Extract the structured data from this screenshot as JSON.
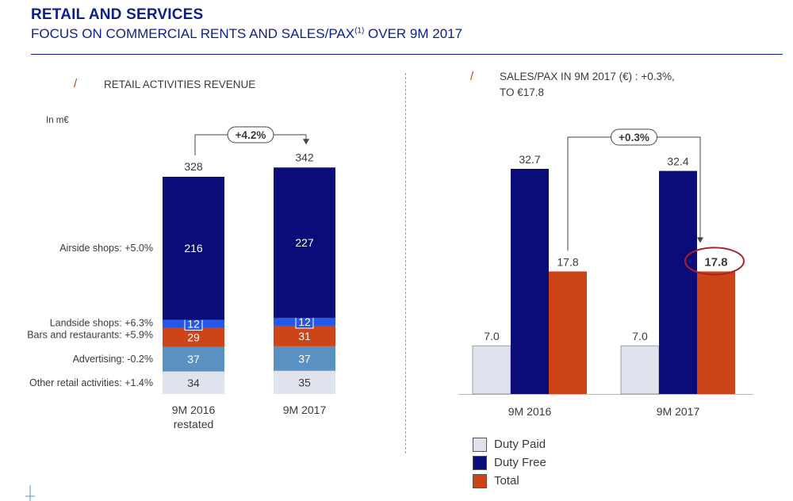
{
  "header": {
    "title": "RETAIL AND SERVICES",
    "subtitle_main": "FOCUS ON COMMERCIAL RENTS AND SALES/PAX",
    "subtitle_sup": "(1)",
    "subtitle_tail": " OVER 9M 2017"
  },
  "left_panel": {
    "slash": "/",
    "title": "RETAIL ACTIVITIES REVENUE",
    "unit": "In m€"
  },
  "right_panel": {
    "slash": "/",
    "title_line1": "SALES/PAX IN 9M 2017 (€) : +0.3%,",
    "title_line2": "TO €17.8"
  },
  "colors": {
    "airside": "#0a0d78",
    "landside": "#2358e8",
    "bars": "#cc4418",
    "advertising": "#5b91c2",
    "other": "#dfe3ee",
    "duty_paid": "#dfe3ee",
    "duty_free": "#0a0d78",
    "total": "#cc4418",
    "highlight": "#a8242b"
  },
  "chart_data": [
    {
      "type": "bar",
      "stacked": true,
      "categories": [
        "9M 2016 restated",
        "9M 2017"
      ],
      "series": [
        {
          "name": "Other retail activities: +1.4%",
          "values": [
            34,
            35
          ]
        },
        {
          "name": "Advertising: -0.2%",
          "values": [
            37,
            37
          ]
        },
        {
          "name": "Bars and restaurants: +5.9%",
          "values": [
            29,
            31
          ]
        },
        {
          "name": "Landside shops: +6.3%",
          "values": [
            12,
            12
          ]
        },
        {
          "name": "Airside shops: +5.0%",
          "values": [
            216,
            227
          ]
        }
      ],
      "totals": [
        328,
        342
      ],
      "growth_label": "+4.2%"
    },
    {
      "type": "bar",
      "grouped": true,
      "categories": [
        "9M 2016",
        "9M 2017"
      ],
      "series": [
        {
          "name": "Duty Paid",
          "values": [
            7.0,
            7.0
          ]
        },
        {
          "name": "Duty Free",
          "values": [
            32.7,
            32.4
          ]
        },
        {
          "name": "Total",
          "values": [
            17.8,
            17.8
          ]
        }
      ],
      "growth_label": "+0.3%",
      "legend": "bottom-left"
    }
  ]
}
